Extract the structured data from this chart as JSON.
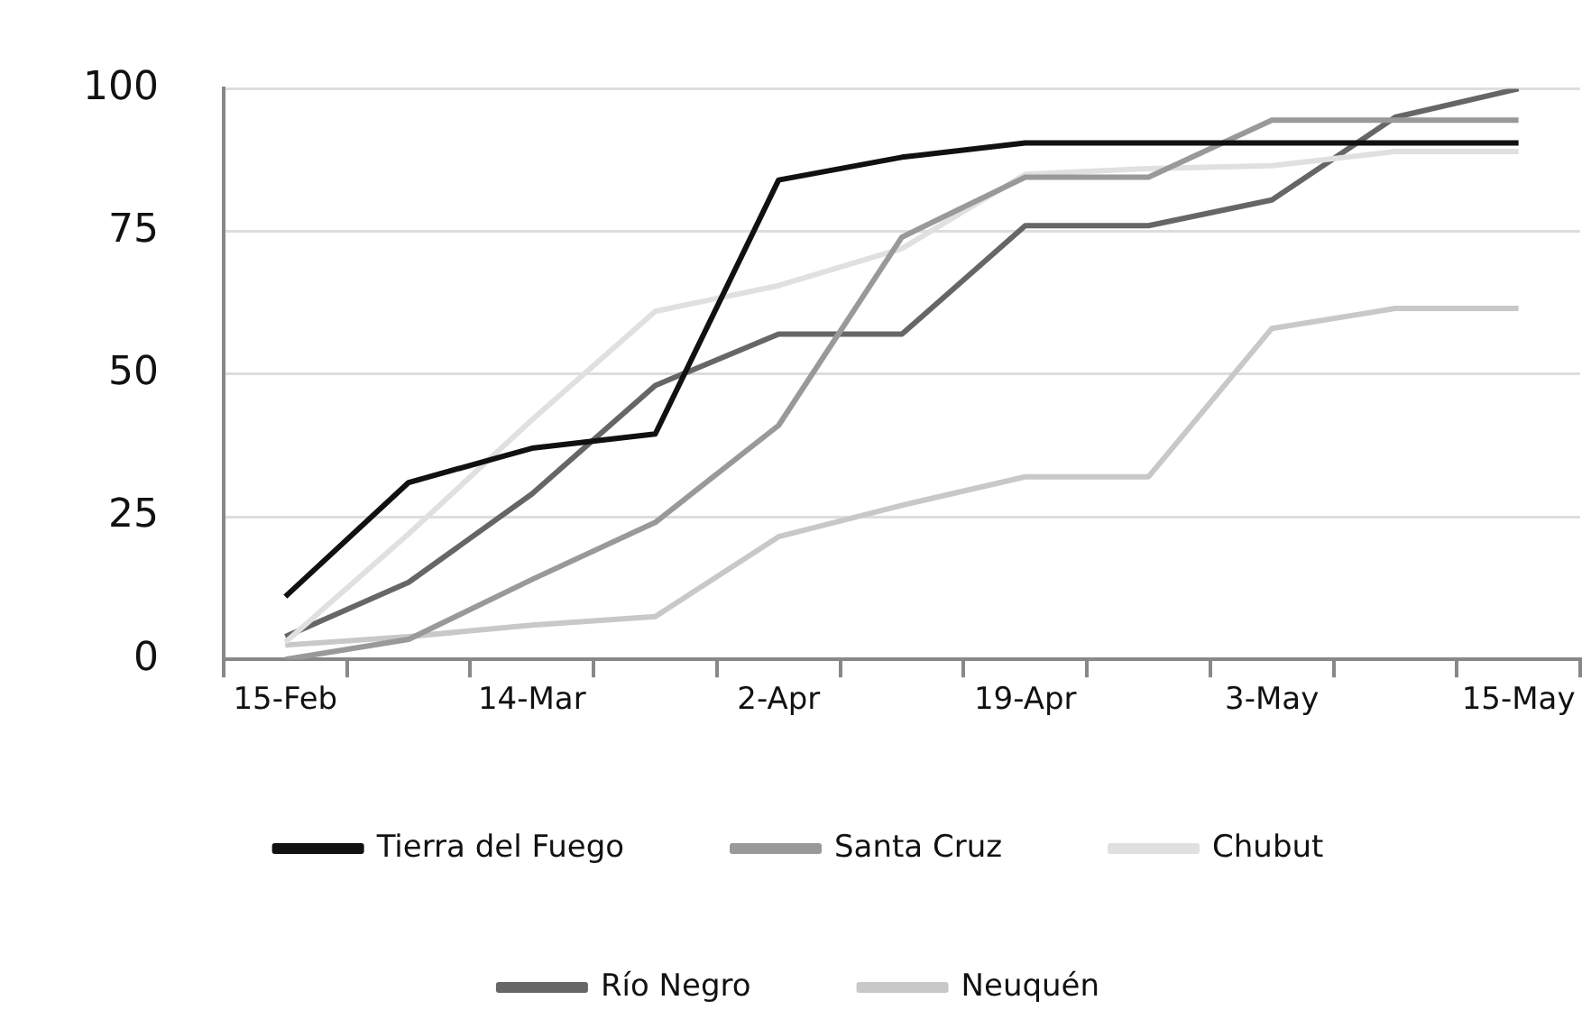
{
  "chart_data": {
    "type": "line",
    "categories": [
      "15-Feb",
      null,
      "14-Mar",
      null,
      "2-Apr",
      null,
      "19-Apr",
      null,
      "3-May",
      null,
      "15-May"
    ],
    "series": [
      {
        "name": "Tierra del Fuego",
        "color": "#111111",
        "values": [
          11,
          31,
          37,
          39.5,
          84,
          88,
          90.5,
          90.5,
          90.5,
          90.5,
          90.5
        ]
      },
      {
        "name": "Santa Cruz",
        "color": "#999999",
        "values": [
          0,
          3.5,
          14,
          24,
          41,
          74,
          84.5,
          84.5,
          94.5,
          94.5,
          94.5
        ]
      },
      {
        "name": "Chubut",
        "color": "#e0e0e0",
        "values": [
          3,
          22,
          42,
          61,
          65.5,
          72,
          85,
          86,
          86.5,
          89,
          89
        ]
      },
      {
        "name": "Río Negro",
        "color": "#666666",
        "values": [
          4,
          13.5,
          29,
          48,
          57,
          57,
          76,
          76,
          80.5,
          95,
          100
        ]
      },
      {
        "name": "Neuquén",
        "color": "#c8c8c8",
        "values": [
          2.5,
          4,
          6,
          7.5,
          21.5,
          27,
          32,
          32,
          58,
          61.5,
          61.5
        ]
      }
    ],
    "ylim": [
      0,
      100
    ],
    "yticks": [
      0,
      25,
      50,
      75,
      100
    ],
    "grid": "y",
    "legend": "bottom",
    "marker": "none",
    "line_style": "solid"
  }
}
